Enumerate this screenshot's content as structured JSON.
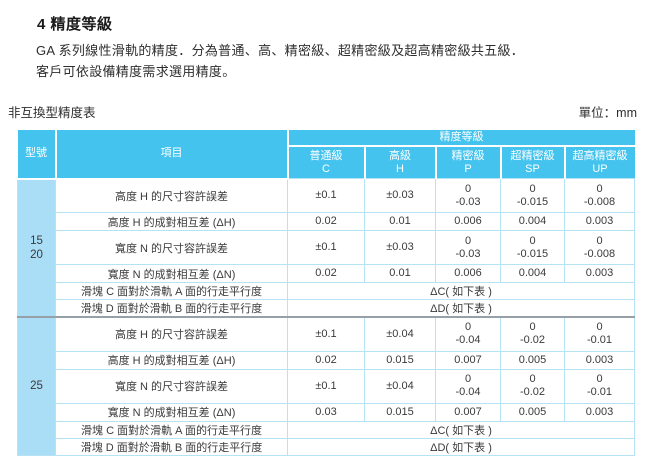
{
  "page": {
    "title": "4 精度等級",
    "intro_line1": "GA 系列線性滑軌的精度．分為普通、高、精密級、超精密級及超高精密級共五級．",
    "intro_line2": "客戶可依設備精度需求選用精度。",
    "table_caption": "非互換型精度表",
    "unit_label": "單位：mm"
  },
  "table": {
    "col_model": "型號",
    "col_item": "項目",
    "grade_group": "精度等級",
    "grades": [
      {
        "name": "普通級",
        "code": "C"
      },
      {
        "name": "高級",
        "code": "H"
      },
      {
        "name": "精密級",
        "code": "P"
      },
      {
        "name": "超精密級",
        "code": "SP"
      },
      {
        "name": "超高精密級",
        "code": "UP"
      }
    ],
    "blocks": [
      {
        "model": "15\n20",
        "rows": [
          {
            "item": "高度 H 的尺寸容許誤差",
            "tall": true,
            "values": [
              "±0.1",
              "±0.03",
              "0\n-0.03",
              "0\n-0.015",
              "0\n-0.008"
            ]
          },
          {
            "item": "高度 H 的成對相互差 (ΔH)",
            "values": [
              "0.02",
              "0.01",
              "0.006",
              "0.004",
              "0.003"
            ]
          },
          {
            "item": "寬度 N 的尺寸容許誤差",
            "tall": true,
            "values": [
              "±0.1",
              "±0.03",
              "0\n-0.03",
              "0\n-0.015",
              "0\n-0.008"
            ]
          },
          {
            "item": "寬度 N 的成對相互差 (ΔN)",
            "values": [
              "0.02",
              "0.01",
              "0.006",
              "0.004",
              "0.003"
            ]
          },
          {
            "item": "滑塊 C 面對於滑軌 A 面的行走平行度",
            "span": "ΔC( 如下表 )"
          },
          {
            "item": "滑塊 D 面對於滑軌 B 面的行走平行度",
            "span": "ΔD( 如下表 )"
          }
        ]
      },
      {
        "model": "25",
        "rows": [
          {
            "item": "高度 H 的尺寸容許誤差",
            "tall": true,
            "values": [
              "±0.1",
              "±0.04",
              "0\n-0.04",
              "0\n-0.02",
              "0\n-0.01"
            ]
          },
          {
            "item": "高度 H 的成對相互差 (ΔH)",
            "values": [
              "0.02",
              "0.015",
              "0.007",
              "0.005",
              "0.003"
            ]
          },
          {
            "item": "寬度 N 的尺寸容許誤差",
            "tall": true,
            "values": [
              "±0.1",
              "±0.04",
              "0\n-0.04",
              "0\n-0.02",
              "0\n-0.01"
            ]
          },
          {
            "item": "寬度 N 的成對相互差 (ΔN)",
            "values": [
              "0.03",
              "0.015",
              "0.007",
              "0.005",
              "0.003"
            ]
          },
          {
            "item": "滑塊 C 面對於滑軌 A 面的行走平行度",
            "span": "ΔC( 如下表 )"
          },
          {
            "item": "滑塊 D 面對於滑軌 B 面的行走平行度",
            "span": "ΔD( 如下表 )"
          }
        ]
      }
    ],
    "colors": {
      "header_bg": "#44c3ee",
      "model_bg": "#aadef7",
      "grid_line": "#b5e2f4",
      "block_divider": "#97a0a6",
      "header_text": "#ffffff",
      "body_text": "#3a3a3a"
    }
  }
}
